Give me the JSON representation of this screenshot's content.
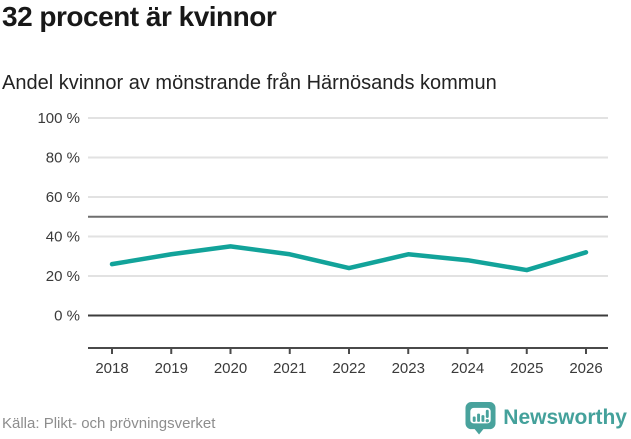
{
  "header": {
    "title": "32 procent är kvinnor",
    "subtitle": "Andel kvinnor av mönstrande från Härnösands kommun"
  },
  "chart_data": {
    "type": "line",
    "title": "32 procent är kvinnor",
    "subtitle": "Andel kvinnor av mönstrande från Härnösands kommun",
    "categories": [
      "2018",
      "2019",
      "2020",
      "2021",
      "2022",
      "2023",
      "2024",
      "2025",
      "2026"
    ],
    "series": [
      {
        "name": "Andel kvinnor av mönstrande",
        "values": [
          26,
          31,
          35,
          31,
          24,
          31,
          28,
          23,
          32
        ]
      }
    ],
    "xlabel": "",
    "ylabel": "",
    "ylim": [
      0,
      100
    ],
    "y_ticks": [
      100,
      80,
      60,
      40,
      20,
      0
    ],
    "y_tick_suffix": " %",
    "reference_line": 50,
    "grid": true,
    "legend": "none",
    "line_color": "#12a39a",
    "gridline_color": "#e2e2e2",
    "zero_line_color": "#3c3c3c",
    "reference_line_color": "#6e6e6e",
    "axis_color": "#4a4a4a"
  },
  "footer": {
    "source": "Källa: Plikt- och prövningsverket",
    "brand": "Newsworthy"
  },
  "colors": {
    "accent_teal": "#12a39a",
    "logo_teal": "#44a19b",
    "title_text": "#181818",
    "muted_text": "#8d8d8d"
  }
}
